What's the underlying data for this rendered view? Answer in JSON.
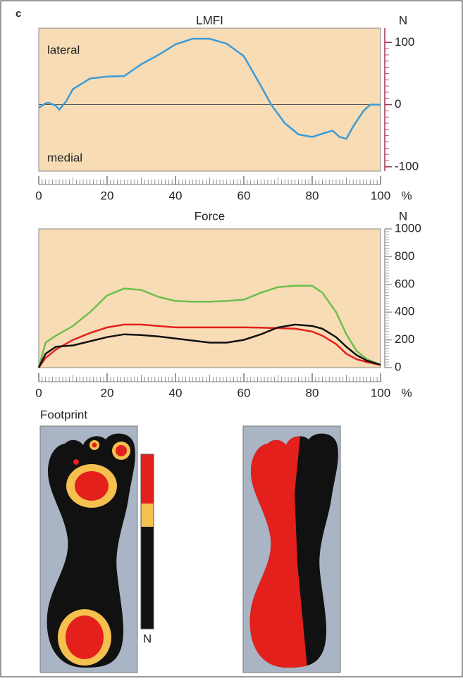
{
  "panel_label": "c",
  "chart_data": [
    {
      "type": "line",
      "title": "LMFI",
      "y_unit": "N",
      "x_unit": "%",
      "annotations": [
        "lateral",
        "medial"
      ],
      "x": [
        0,
        2,
        3,
        5,
        6,
        8,
        10,
        15,
        20,
        25,
        30,
        35,
        40,
        45,
        50,
        55,
        60,
        65,
        68,
        72,
        76,
        80,
        84,
        86,
        88,
        90,
        92,
        95,
        97,
        100
      ],
      "series": [
        {
          "color": "#3b9bd6",
          "values": [
            -5,
            2,
            3,
            -2,
            -8,
            5,
            25,
            42,
            45,
            46,
            65,
            80,
            97,
            106,
            106,
            98,
            78,
            30,
            0,
            -30,
            -48,
            -52,
            -45,
            -42,
            -52,
            -55,
            -35,
            -10,
            0,
            0
          ]
        }
      ],
      "xlim": [
        0,
        100
      ],
      "xticks": [
        0,
        20,
        40,
        60,
        80,
        100
      ],
      "ylim": [
        -107,
        123
      ],
      "yticks": [
        100,
        0,
        -100
      ],
      "zero_line": true,
      "background": "#f8dcb6",
      "axis_color": "#a0304a"
    },
    {
      "type": "line",
      "title": "Force",
      "y_unit": "N",
      "x_unit": "%",
      "x": [
        0,
        2,
        5,
        10,
        15,
        20,
        25,
        30,
        35,
        40,
        45,
        50,
        55,
        60,
        65,
        70,
        75,
        80,
        83,
        87,
        90,
        93,
        96,
        100
      ],
      "series": [
        {
          "color": "#6cbf4e",
          "values": [
            0,
            180,
            230,
            300,
            400,
            520,
            570,
            560,
            510,
            480,
            475,
            475,
            480,
            490,
            540,
            580,
            590,
            590,
            540,
            400,
            240,
            120,
            60,
            20
          ]
        },
        {
          "color": "#e3201c",
          "values": [
            0,
            70,
            130,
            200,
            250,
            290,
            310,
            310,
            300,
            290,
            290,
            290,
            290,
            290,
            288,
            285,
            280,
            260,
            230,
            170,
            100,
            60,
            40,
            20
          ]
        },
        {
          "color": "#111111",
          "values": [
            0,
            100,
            150,
            160,
            190,
            220,
            240,
            235,
            225,
            210,
            195,
            180,
            180,
            200,
            240,
            290,
            310,
            300,
            280,
            220,
            150,
            90,
            50,
            20
          ]
        }
      ],
      "xlim": [
        0,
        100
      ],
      "xticks": [
        0,
        20,
        40,
        60,
        80,
        100
      ],
      "ylim": [
        0,
        1000
      ],
      "yticks": [
        0,
        200,
        400,
        600,
        800,
        1000
      ],
      "zero_line": false,
      "background": "#f8dcb6",
      "axis_color": "#999999"
    }
  ],
  "footprint": {
    "title": "Footprint",
    "scale_unit": "N"
  }
}
